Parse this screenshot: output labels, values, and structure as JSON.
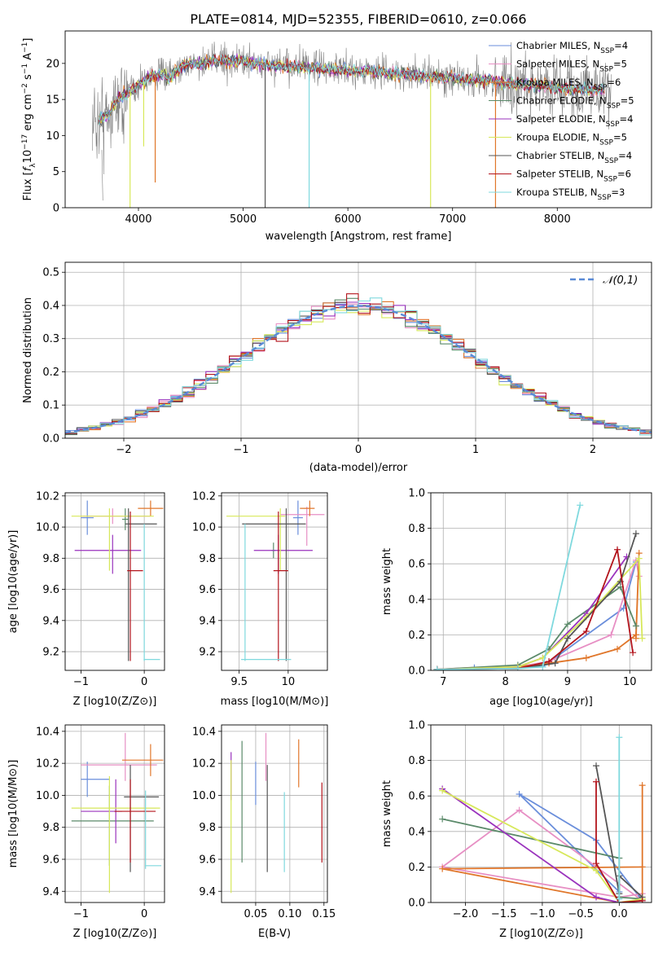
{
  "figure_title": "PLATE=0814, MJD=52355, FIBERID=0610, z=0.066",
  "colors": [
    "#6a8edb",
    "#e78fc4",
    "#e0762a",
    "#5b8a6a",
    "#9a33bd",
    "#d7e85a",
    "#555555",
    "#b3141c",
    "#7fd9de"
  ],
  "legend": [
    {
      "label": "Chabrier MILES, N_SSP=4"
    },
    {
      "label": "Salpeter MILES, N_SSP=5"
    },
    {
      "label": "Kroupa MILES, N_SSP=6"
    },
    {
      "label": "Chabrier ELODIE, N_SSP=5"
    },
    {
      "label": "Salpeter ELODIE, N_SSP=4"
    },
    {
      "label": "Kroupa ELODIE, N_SSP=5"
    },
    {
      "label": "Chabrier STELIB, N_SSP=4"
    },
    {
      "label": "Salpeter STELIB, N_SSP=6"
    },
    {
      "label": "Kroupa STELIB, N_SSP=3"
    }
  ],
  "chart_data": [
    {
      "id": "spectrum",
      "type": "line",
      "xlabel": "wavelength [Angstrom, rest frame]",
      "ylabel": "Flux [f_λ 10^-17 erg cm^-2 s^-1 A^-1]",
      "xlim": [
        3300,
        8900
      ],
      "ylim": [
        0,
        24.5
      ],
      "xticks": [
        4000,
        5000,
        6000,
        7000,
        8000
      ],
      "yticks": [
        0,
        5,
        10,
        15,
        20
      ],
      "continuum_x": [
        3600,
        3700,
        3800,
        3900,
        4000,
        4100,
        4200,
        4300,
        4400,
        4500,
        4600,
        4800,
        5000,
        5200,
        5400,
        5600,
        5800,
        6000,
        6200,
        6400,
        6600,
        6800,
        7000,
        7200,
        7400,
        7600,
        7800,
        8000,
        8200,
        8400,
        8500
      ],
      "continuum_y": [
        12,
        12.8,
        15,
        16,
        17,
        18,
        18.5,
        18,
        19.5,
        20,
        20,
        20.5,
        20.3,
        19.8,
        19.6,
        19.5,
        19.2,
        19,
        19,
        18.6,
        18.5,
        18.2,
        18,
        17.6,
        17.5,
        17.2,
        17,
        16.6,
        16.4,
        16.3,
        16.3
      ],
      "grid": false
    },
    {
      "id": "residuals",
      "type": "line",
      "xlabel": "(data-model)/error",
      "ylabel": "Normed distribution",
      "xlim": [
        -2.5,
        2.5
      ],
      "ylim": [
        0,
        0.53
      ],
      "xticks": [
        -2,
        -1,
        0,
        1,
        2
      ],
      "yticks": [
        0,
        0.1,
        0.2,
        0.3,
        0.4,
        0.5
      ],
      "reference_label": "𝒩(0,1)",
      "grid": true,
      "legend_position": "top-right"
    },
    {
      "id": "age_vs_Z",
      "type": "scatter",
      "xlabel": "Z [log10(Z/Z⊙)]",
      "ylabel": "age [log10(age/yr)]",
      "xlim": [
        -1.25,
        0.32
      ],
      "ylim": [
        9.08,
        10.22
      ],
      "xticks": [
        -1,
        0
      ],
      "yticks": [
        9.2,
        9.4,
        9.6,
        9.8,
        10.0,
        10.2
      ],
      "points": [
        {
          "x": -0.9,
          "y": 10.06,
          "xerr": [
            0.1,
            0.1
          ],
          "yerr": [
            0.11,
            0.11
          ]
        },
        {
          "x": -0.5,
          "y": 10.07,
          "xerr": [
            0.5,
            0.6
          ],
          "yerr": [
            0.05,
            0.05
          ]
        },
        {
          "x": 0.1,
          "y": 10.12,
          "xerr": [
            0.2,
            0.2
          ],
          "yerr": [
            0.05,
            0.05
          ]
        },
        {
          "x": -0.3,
          "y": 10.05,
          "xerr": [
            0.05,
            0.05
          ],
          "yerr": [
            0.07,
            0.07
          ]
        },
        {
          "x": -0.5,
          "y": 9.85,
          "xerr": [
            0.6,
            0.45
          ],
          "yerr": [
            0.15,
            0.1
          ]
        },
        {
          "x": -0.55,
          "y": 10.07,
          "xerr": [
            0.6,
            0.7
          ],
          "yerr": [
            0.35,
            0.05
          ]
        },
        {
          "x": -0.25,
          "y": 10.02,
          "xerr": [
            0.05,
            0.45
          ],
          "yerr": [
            0.88,
            0.1
          ]
        },
        {
          "x": -0.22,
          "y": 9.72,
          "xerr": [
            0.05,
            0.2
          ],
          "yerr": [
            0.58,
            0.38
          ]
        },
        {
          "x": 0.0,
          "y": 9.15,
          "xerr": [
            0.01,
            0.25
          ],
          "yerr": [
            0.01,
            0.87
          ]
        }
      ],
      "grid": true
    },
    {
      "id": "age_vs_mass",
      "type": "scatter",
      "xlabel": "mass [log10(M/M⊙)]",
      "ylabel": "",
      "xlim": [
        9.32,
        10.4
      ],
      "ylim": [
        9.08,
        10.22
      ],
      "xticks": [
        9.5,
        10.0
      ],
      "yticks": [
        9.2,
        9.4,
        9.6,
        9.8,
        10.0,
        10.2
      ],
      "points": [
        {
          "x": 10.1,
          "y": 10.06,
          "xerr": [
            0.05,
            0.05
          ],
          "yerr": [
            0.11,
            0.11
          ]
        },
        {
          "x": 10.19,
          "y": 10.08,
          "xerr": [
            0.27,
            0.18
          ],
          "yerr": [
            0.2,
            0.05
          ]
        },
        {
          "x": 10.22,
          "y": 10.12,
          "xerr": [
            0.1,
            0.05
          ],
          "yerr": [
            0.05,
            0.05
          ]
        },
        {
          "x": 9.85,
          "y": 9.85,
          "xerr": [
            0.02,
            0.02
          ],
          "yerr": [
            0.05,
            0.05
          ]
        },
        {
          "x": 9.9,
          "y": 9.85,
          "xerr": [
            0.25,
            0.35
          ],
          "yerr": [
            0.15,
            0.1
          ]
        },
        {
          "x": 9.92,
          "y": 10.07,
          "xerr": [
            0.55,
            0.05
          ],
          "yerr": [
            0.35,
            0.05
          ]
        },
        {
          "x": 9.98,
          "y": 10.02,
          "xerr": [
            0.45,
            0.2
          ],
          "yerr": [
            0.88,
            0.1
          ]
        },
        {
          "x": 9.9,
          "y": 9.72,
          "xerr": [
            0.05,
            0.1
          ],
          "yerr": [
            0.58,
            0.38
          ]
        },
        {
          "x": 9.56,
          "y": 9.15,
          "xerr": [
            0.04,
            0.47
          ],
          "yerr": [
            0.01,
            0.87
          ]
        }
      ],
      "grid": true
    },
    {
      "id": "massweight_vs_age",
      "type": "line",
      "xlabel": "age [log10(age/yr)]",
      "ylabel": "mass weight",
      "xlim": [
        6.8,
        10.35
      ],
      "ylim": [
        0,
        1
      ],
      "xticks": [
        7,
        8,
        9,
        10
      ],
      "yticks": [
        0,
        0.2,
        0.4,
        0.6,
        0.8,
        1.0
      ],
      "series": [
        {
          "x": [
            6.9,
            7.5,
            8.6,
            9.9,
            10.1
          ],
          "y": [
            0.005,
            0.015,
            0.02,
            0.35,
            0.61
          ]
        },
        {
          "x": [
            6.9,
            8.2,
            8.7,
            9.7,
            10.1,
            10.15
          ],
          "y": [
            0.005,
            0.02,
            0.05,
            0.2,
            0.62,
            0.53
          ]
        },
        {
          "x": [
            6.9,
            8.2,
            8.7,
            9.3,
            9.8,
            10.1,
            10.15,
            10.1
          ],
          "y": [
            0.005,
            0.02,
            0.04,
            0.07,
            0.12,
            0.2,
            0.66,
            0.18
          ]
        },
        {
          "x": [
            6.9,
            8.2,
            8.7,
            9.0,
            9.85,
            10.1
          ],
          "y": [
            0.005,
            0.03,
            0.12,
            0.26,
            0.47,
            0.25
          ]
        },
        {
          "x": [
            6.9,
            8.2,
            8.6,
            9.3,
            9.95
          ],
          "y": [
            0.005,
            0.02,
            0.07,
            0.32,
            0.64
          ]
        },
        {
          "x": [
            6.9,
            8.2,
            8.6,
            9.3,
            10.15,
            10.2
          ],
          "y": [
            0.005,
            0.02,
            0.07,
            0.3,
            0.63,
            0.18
          ]
        },
        {
          "x": [
            6.9,
            8.2,
            8.8,
            9.0,
            9.85,
            10.1
          ],
          "y": [
            0.005,
            0.01,
            0.04,
            0.18,
            0.5,
            0.77
          ]
        },
        {
          "x": [
            6.9,
            8.2,
            8.7,
            9.3,
            9.8,
            10.05
          ],
          "y": [
            0.005,
            0.01,
            0.05,
            0.22,
            0.68,
            0.1
          ]
        },
        {
          "x": [
            6.9,
            8.2,
            8.6,
            9.2
          ],
          "y": [
            0.005,
            0.01,
            0.02,
            0.93
          ]
        }
      ],
      "grid": true
    },
    {
      "id": "mass_vs_Z",
      "type": "scatter",
      "xlabel": "Z [log10(Z/Z⊙)]",
      "ylabel": "mass [log10(M/M⊙)]",
      "xlim": [
        -1.25,
        0.32
      ],
      "ylim": [
        9.33,
        10.44
      ],
      "xticks": [
        -1,
        0
      ],
      "yticks": [
        9.4,
        9.6,
        9.8,
        10.0,
        10.2,
        10.4
      ],
      "points": [
        {
          "x": -0.9,
          "y": 10.1,
          "xerr": [
            0.1,
            0.35
          ],
          "yerr": [
            0.11,
            0.11
          ]
        },
        {
          "x": -0.3,
          "y": 10.19,
          "xerr": [
            0.7,
            0.5
          ],
          "yerr": [
            0.1,
            0.2
          ]
        },
        {
          "x": 0.1,
          "y": 10.22,
          "xerr": [
            0.45,
            0.2
          ],
          "yerr": [
            0.1,
            0.1
          ]
        },
        {
          "x": -0.55,
          "y": 9.84,
          "xerr": [
            0.6,
            0.7
          ],
          "yerr": [
            0.28,
            0.22
          ]
        },
        {
          "x": -0.45,
          "y": 9.9,
          "xerr": [
            0.55,
            0.1
          ],
          "yerr": [
            0.2,
            0.2
          ]
        },
        {
          "x": -0.55,
          "y": 9.92,
          "xerr": [
            0.6,
            0.8
          ],
          "yerr": [
            0.53,
            0.2
          ]
        },
        {
          "x": -0.22,
          "y": 9.99,
          "xerr": [
            0.1,
            0.45
          ],
          "yerr": [
            0.47,
            0.2
          ]
        },
        {
          "x": -0.22,
          "y": 9.9,
          "xerr": [
            0.25,
            0.4
          ],
          "yerr": [
            0.32,
            0.2
          ]
        },
        {
          "x": 0.02,
          "y": 9.56,
          "xerr": [
            0.01,
            0.25
          ],
          "yerr": [
            0.02,
            0.47
          ]
        }
      ],
      "grid": true
    },
    {
      "id": "mass_vs_ebv",
      "type": "scatter",
      "xlabel": "E(B-V)",
      "ylabel": "",
      "xlim": [
        0.0,
        0.155
      ],
      "ylim": [
        9.33,
        10.44
      ],
      "xticks": [
        0.05,
        0.1,
        0.15
      ],
      "yticks": [
        9.4,
        9.6,
        9.8,
        10.0,
        10.2,
        10.4
      ],
      "points": [
        {
          "x": 0.05,
          "y": 10.1,
          "yerr": [
            0.16,
            0.11
          ]
        },
        {
          "x": 0.065,
          "y": 10.19,
          "yerr": [
            0.1,
            0.2
          ]
        },
        {
          "x": 0.113,
          "y": 10.22,
          "yerr": [
            0.17,
            0.13
          ]
        },
        {
          "x": 0.03,
          "y": 9.96,
          "yerr": [
            0.38,
            0.38
          ]
        },
        {
          "x": 0.014,
          "y": 10.17,
          "yerr": [
            0.2,
            0.1
          ]
        },
        {
          "x": 0.014,
          "y": 9.92,
          "yerr": [
            0.53,
            0.3
          ]
        },
        {
          "x": 0.067,
          "y": 9.99,
          "yerr": [
            0.47,
            0.2
          ]
        },
        {
          "x": 0.147,
          "y": 9.83,
          "yerr": [
            0.25,
            0.25
          ]
        },
        {
          "x": 0.092,
          "y": 9.77,
          "yerr": [
            0.25,
            0.25
          ]
        }
      ],
      "grid": true
    },
    {
      "id": "massweight_vs_Z",
      "type": "line",
      "xlabel": "Z [log10(Z/Z⊙)]",
      "ylabel": "mass weight",
      "xlim": [
        -2.45,
        0.42
      ],
      "ylim": [
        0,
        1
      ],
      "xticks": [
        -2.0,
        -1.5,
        -1.0,
        -0.5,
        0.0
      ],
      "yticks": [
        0,
        0.2,
        0.4,
        0.6,
        0.8,
        1.0
      ],
      "series": [
        {
          "x": [
            0.3,
            -0.3,
            -1.3,
            0.0
          ],
          "y": [
            0.01,
            0.35,
            0.61,
            0.06
          ]
        },
        {
          "x": [
            0.3,
            -1.3,
            -2.3,
            0.0,
            0.3
          ],
          "y": [
            0.01,
            0.52,
            0.2,
            0.03,
            0.05
          ]
        },
        {
          "x": [
            0.3,
            0.3,
            0.3,
            -2.3,
            0.0
          ],
          "y": [
            0.02,
            0.66,
            0.2,
            0.19,
            0.0
          ]
        },
        {
          "x": [
            -2.3,
            0.0,
            0.0,
            0.3
          ],
          "y": [
            0.47,
            0.25,
            0.03,
            0.02
          ]
        },
        {
          "x": [
            -2.3,
            -0.3,
            0.0
          ],
          "y": [
            0.64,
            0.03,
            0.0
          ]
        },
        {
          "x": [
            -2.3,
            -0.3,
            0.0,
            0.3
          ],
          "y": [
            0.63,
            0.18,
            0.0,
            0.02
          ]
        },
        {
          "x": [
            -0.3,
            0.0,
            0.0,
            0.3
          ],
          "y": [
            0.77,
            0.05,
            0.15,
            0.03
          ]
        },
        {
          "x": [
            -0.3,
            -0.3,
            0.0,
            0.3
          ],
          "y": [
            0.68,
            0.22,
            0.0,
            0.01
          ]
        },
        {
          "x": [
            0.0,
            0.0,
            0.0
          ],
          "y": [
            0.93,
            0.0,
            0.02
          ]
        }
      ],
      "grid": true
    }
  ]
}
